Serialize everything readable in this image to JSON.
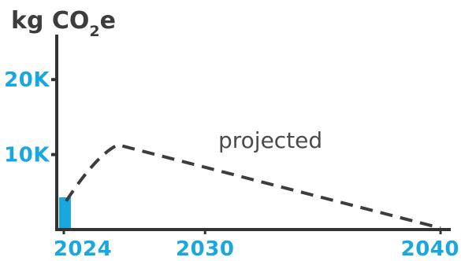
{
  "chart_data": {
    "type": "line",
    "ylabel": {
      "main": "kg CO",
      "subscript": "2",
      "suffix": "e"
    },
    "x_ticks": [
      {
        "value": 2024,
        "label": "2024"
      },
      {
        "value": 2030,
        "label": "2030"
      },
      {
        "value": 2040,
        "label": "2040"
      }
    ],
    "y_ticks": [
      {
        "value": 10000,
        "label": "10K"
      },
      {
        "value": 20000,
        "label": "20K"
      }
    ],
    "xlim": [
      2023.7,
      2040.2
    ],
    "ylim": [
      0,
      26000
    ],
    "bar": {
      "x_start": 2023.7,
      "x_end": 2024.3,
      "value": 4300
    },
    "projected": {
      "label": "projected",
      "points": [
        {
          "x": 2024.1,
          "y": 3800
        },
        {
          "x": 2025.4,
          "y": 10000
        },
        {
          "x": 2026.3,
          "y": 11300
        },
        {
          "x": 2040.0,
          "y": 200
        }
      ]
    },
    "colors": {
      "axis": "#333333",
      "accent": "#19a7df",
      "line": "#3d3d3d",
      "text": "#4a4a4a"
    },
    "grid": false
  }
}
